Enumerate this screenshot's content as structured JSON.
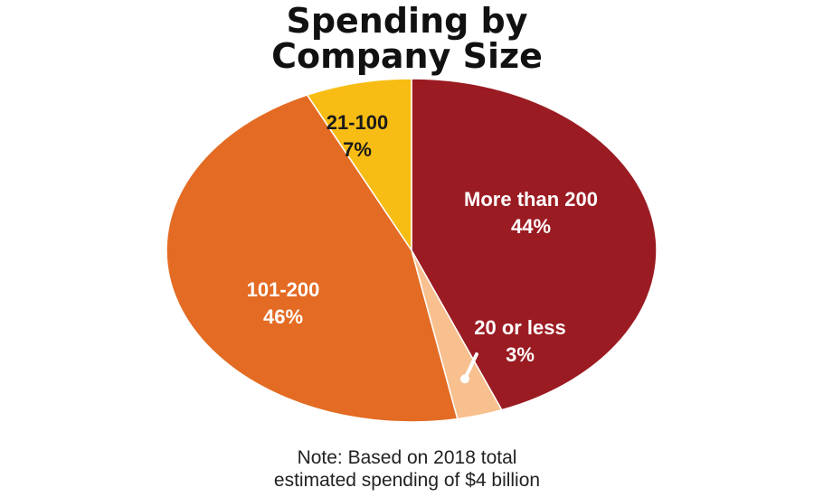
{
  "title_lines": [
    "Spending by",
    "Company Size"
  ],
  "note_lines": [
    "Note: Based on 2018 total",
    "estimated spending of $4 billion"
  ],
  "chart_data": {
    "type": "pie",
    "slices": [
      {
        "label": "More than 200",
        "value": 44,
        "value_label": "44%",
        "color": "#9b1b22",
        "text_color": "#ffffff"
      },
      {
        "label": "20 or less",
        "value": 3,
        "value_label": "3%",
        "color": "#f7c08e",
        "text_color": "#ffffff"
      },
      {
        "label": "101-200",
        "value": 46,
        "value_label": "46%",
        "color": "#e36b23",
        "text_color": "#ffffff"
      },
      {
        "label": "21-100",
        "value": 7,
        "value_label": "7%",
        "color": "#f7bd14",
        "text_color": "#1a1a1a"
      }
    ]
  }
}
